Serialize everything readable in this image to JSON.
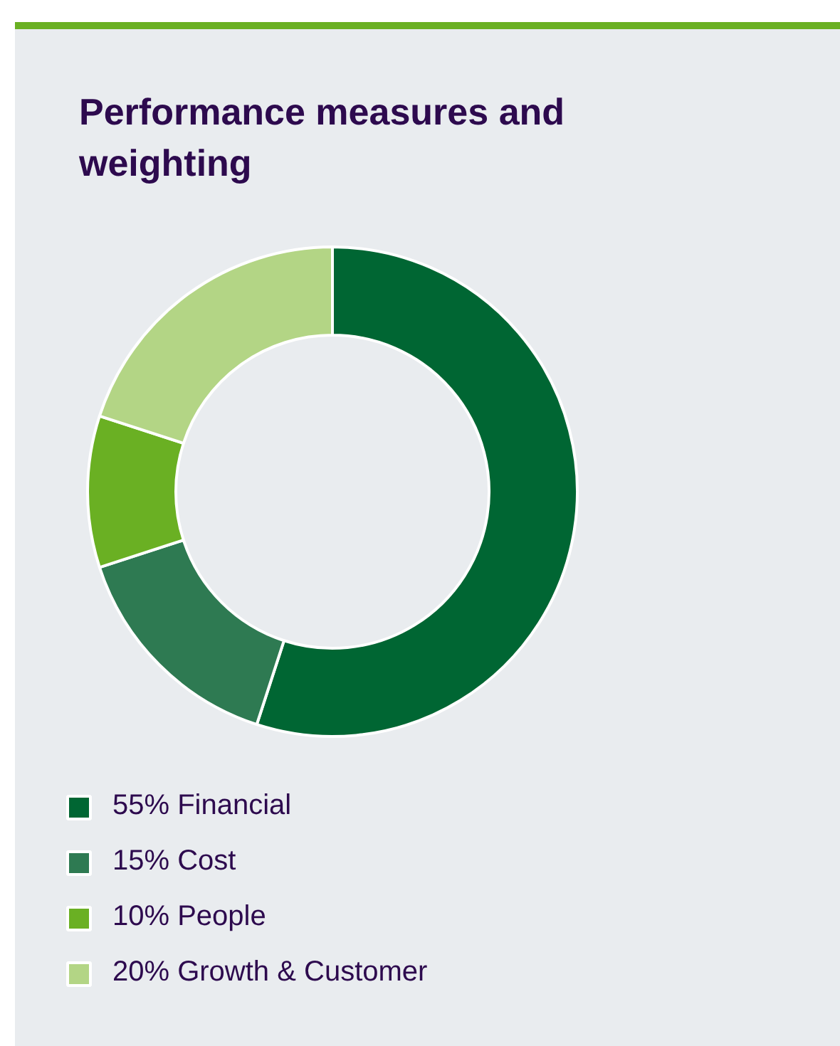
{
  "chart_data": {
    "type": "donut",
    "title": "Performance measures and weighting",
    "categories": [
      "Financial",
      "Cost",
      "People",
      "Growth & Customer"
    ],
    "values": [
      55,
      15,
      10,
      20
    ],
    "colors": [
      "#006633",
      "#2e7a52",
      "#6ab023",
      "#b3d585"
    ],
    "value_labels": [
      "55%",
      "15%",
      "10%",
      "20%"
    ],
    "legend": "bottom"
  }
}
